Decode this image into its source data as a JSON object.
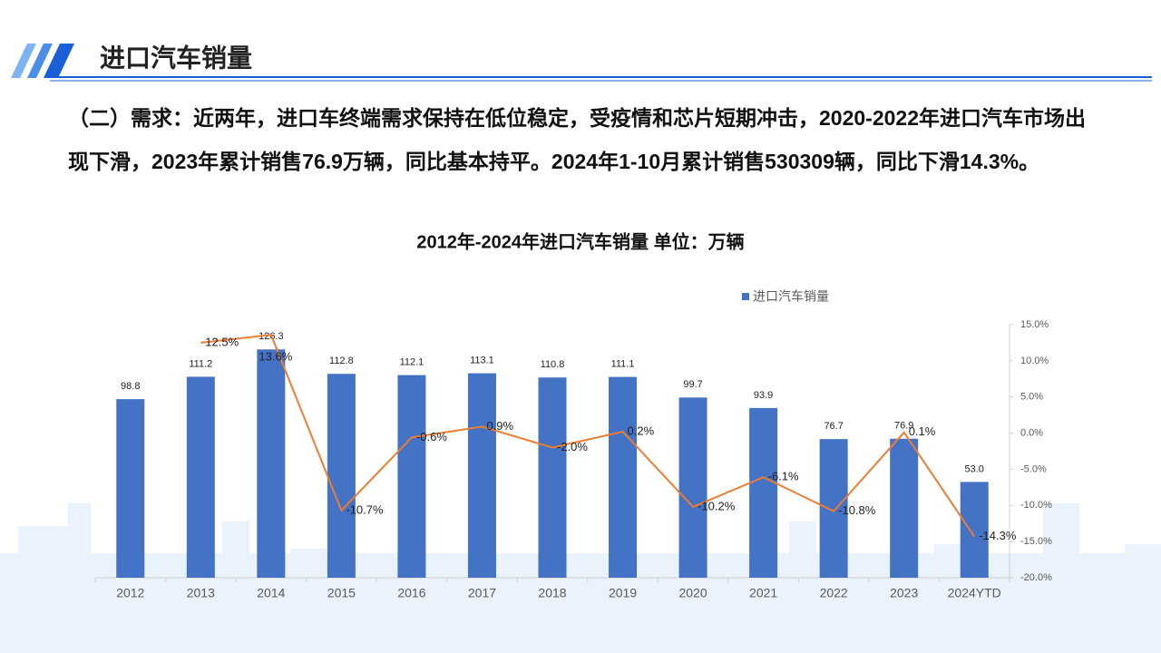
{
  "header": {
    "title": "进口汽车销量"
  },
  "paragraph": "（二）需求：近两年，进口车终端需求保持在低位稳定，受疫情和芯片短期冲击，2020-2022年进口汽车市场出现下滑，2023年累计销售76.9万辆，同比基本持平。2024年1-10月累计销售530309辆，同比下滑14.3%。",
  "chart_data": {
    "type": "bar",
    "title": "2012年-2024年进口汽车销量  单位：万辆",
    "categories": [
      "2012",
      "2013",
      "2014",
      "2015",
      "2016",
      "2017",
      "2018",
      "2019",
      "2020",
      "2021",
      "2022",
      "2023",
      "2024YTD"
    ],
    "ylim": [
      0,
      140
    ],
    "y2lim": [
      -20,
      15
    ],
    "y2ticks": [
      {
        "value": 15,
        "label": "15.0%"
      },
      {
        "value": 10,
        "label": "10.0%"
      },
      {
        "value": 5,
        "label": "5.0%"
      },
      {
        "value": 0,
        "label": "0.0%"
      },
      {
        "value": -5,
        "label": "-5.0%"
      },
      {
        "value": -10,
        "label": "-10.0%"
      },
      {
        "value": -15,
        "label": "-15.0%"
      },
      {
        "value": -20,
        "label": "-20.0%"
      }
    ],
    "legend": "top",
    "series": [
      {
        "name": "进口汽车销量",
        "type": "bar",
        "color": "#4472c4",
        "values": [
          98.8,
          111.2,
          126.3,
          112.8,
          112.1,
          113.1,
          110.8,
          111.1,
          99.7,
          93.9,
          76.7,
          76.9,
          53.0
        ],
        "value_labels": [
          "98.8",
          "111.2",
          "126.3",
          "112.8",
          "112.1",
          "113.1",
          "110.8",
          "111.1",
          "99.7",
          "93.9",
          "76.7",
          "76.9",
          "53.0"
        ]
      },
      {
        "type": "line",
        "axis": "y2",
        "color": "#ed7d31",
        "values": [
          null,
          12.5,
          13.6,
          -10.7,
          -0.6,
          0.9,
          -2.0,
          0.2,
          -10.2,
          -6.1,
          -10.8,
          0.1,
          -14.3
        ],
        "value_labels": [
          null,
          "12.5%",
          "13.6%",
          "-10.7%",
          "-0.6%",
          "0.9%",
          "-2.0%",
          "0.2%",
          "-10.2%",
          "-6.1%",
          "-10.8%",
          "0.1%",
          "-14.3%"
        ]
      }
    ]
  }
}
